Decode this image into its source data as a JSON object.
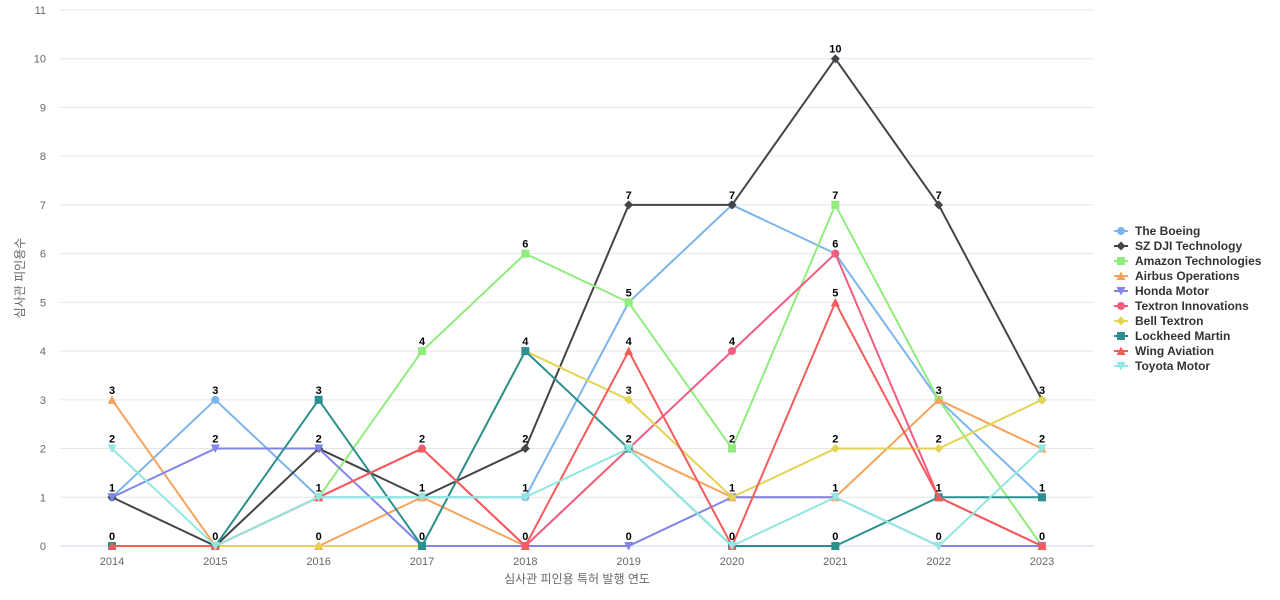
{
  "chart_data": {
    "type": "line",
    "xlabel": "심사관 피인용 특허 발행 연도",
    "ylabel": "심사관 피인용수",
    "x": [
      2014,
      2015,
      2016,
      2017,
      2018,
      2019,
      2020,
      2021,
      2022,
      2023
    ],
    "ylim": [
      0,
      11
    ],
    "yticks": [
      0,
      1,
      2,
      3,
      4,
      5,
      6,
      7,
      8,
      9,
      10,
      11
    ],
    "grid": true,
    "legend_position": "right",
    "series": [
      {
        "name": "The Boeing",
        "color": "#7cb5ec",
        "marker": "circle",
        "values": [
          1,
          3,
          1,
          1,
          1,
          5,
          7,
          6,
          3,
          1
        ]
      },
      {
        "name": "SZ DJI Technology",
        "color": "#434348",
        "marker": "diamond",
        "values": [
          1,
          0,
          2,
          1,
          2,
          7,
          7,
          10,
          7,
          3
        ]
      },
      {
        "name": "Amazon Technologies",
        "color": "#90ed7d",
        "marker": "square",
        "values": [
          0,
          0,
          1,
          4,
          6,
          5,
          2,
          7,
          3,
          0
        ]
      },
      {
        "name": "Airbus Operations",
        "color": "#f7a35c",
        "marker": "triangle",
        "values": [
          3,
          0,
          0,
          1,
          0,
          2,
          1,
          1,
          3,
          2
        ]
      },
      {
        "name": "Honda Motor",
        "color": "#8085e9",
        "marker": "triangle-down",
        "values": [
          1,
          2,
          2,
          0,
          0,
          0,
          1,
          1,
          0,
          0
        ]
      },
      {
        "name": "Textron Innovations",
        "color": "#f15c80",
        "marker": "circle",
        "values": [
          0,
          0,
          1,
          2,
          0,
          2,
          4,
          6,
          1,
          0
        ]
      },
      {
        "name": "Bell Textron",
        "color": "#e4d354",
        "marker": "diamond",
        "values": [
          0,
          0,
          0,
          0,
          4,
          3,
          1,
          2,
          2,
          3
        ]
      },
      {
        "name": "Lockheed Martin",
        "color": "#2b908f",
        "marker": "square",
        "values": [
          0,
          0,
          3,
          0,
          4,
          2,
          0,
          0,
          1,
          1
        ]
      },
      {
        "name": "Wing Aviation",
        "color": "#f45b5b",
        "marker": "triangle",
        "values": [
          0,
          0,
          1,
          2,
          0,
          4,
          0,
          5,
          1,
          0
        ]
      },
      {
        "name": "Toyota Motor",
        "color": "#91e8e1",
        "marker": "triangle-down",
        "values": [
          2,
          0,
          1,
          1,
          1,
          2,
          0,
          1,
          0,
          2
        ]
      }
    ],
    "data_labels": [
      {
        "x": 2014,
        "value": 3
      },
      {
        "x": 2014,
        "value": 2
      },
      {
        "x": 2014,
        "value": 1
      },
      {
        "x": 2014,
        "value": 0
      },
      {
        "x": 2015,
        "value": 3
      },
      {
        "x": 2015,
        "value": 2
      },
      {
        "x": 2015,
        "value": 0
      },
      {
        "x": 2016,
        "value": 3
      },
      {
        "x": 2016,
        "value": 2
      },
      {
        "x": 2016,
        "value": 1
      },
      {
        "x": 2016,
        "value": 0
      },
      {
        "x": 2017,
        "value": 4
      },
      {
        "x": 2017,
        "value": 2
      },
      {
        "x": 2017,
        "value": 1
      },
      {
        "x": 2017,
        "value": 0
      },
      {
        "x": 2018,
        "value": 6
      },
      {
        "x": 2018,
        "value": 4
      },
      {
        "x": 2018,
        "value": 2
      },
      {
        "x": 2018,
        "value": 1
      },
      {
        "x": 2018,
        "value": 0
      },
      {
        "x": 2019,
        "value": 7
      },
      {
        "x": 2019,
        "value": 5
      },
      {
        "x": 2019,
        "value": 4
      },
      {
        "x": 2019,
        "value": 3
      },
      {
        "x": 2019,
        "value": 2
      },
      {
        "x": 2019,
        "value": 0
      },
      {
        "x": 2020,
        "value": 7
      },
      {
        "x": 2020,
        "value": 4
      },
      {
        "x": 2020,
        "value": 2
      },
      {
        "x": 2020,
        "value": 1
      },
      {
        "x": 2020,
        "value": 0
      },
      {
        "x": 2021,
        "value": 10
      },
      {
        "x": 2021,
        "value": 7
      },
      {
        "x": 2021,
        "value": 6
      },
      {
        "x": 2021,
        "value": 5
      },
      {
        "x": 2021,
        "value": 2
      },
      {
        "x": 2021,
        "value": 1
      },
      {
        "x": 2021,
        "value": 0
      },
      {
        "x": 2022,
        "value": 7
      },
      {
        "x": 2022,
        "value": 3
      },
      {
        "x": 2022,
        "value": 2
      },
      {
        "x": 2022,
        "value": 1
      },
      {
        "x": 2022,
        "value": 0
      },
      {
        "x": 2023,
        "value": 3
      },
      {
        "x": 2023,
        "value": 2
      },
      {
        "x": 2023,
        "value": 1
      },
      {
        "x": 2023,
        "value": 0
      }
    ]
  }
}
